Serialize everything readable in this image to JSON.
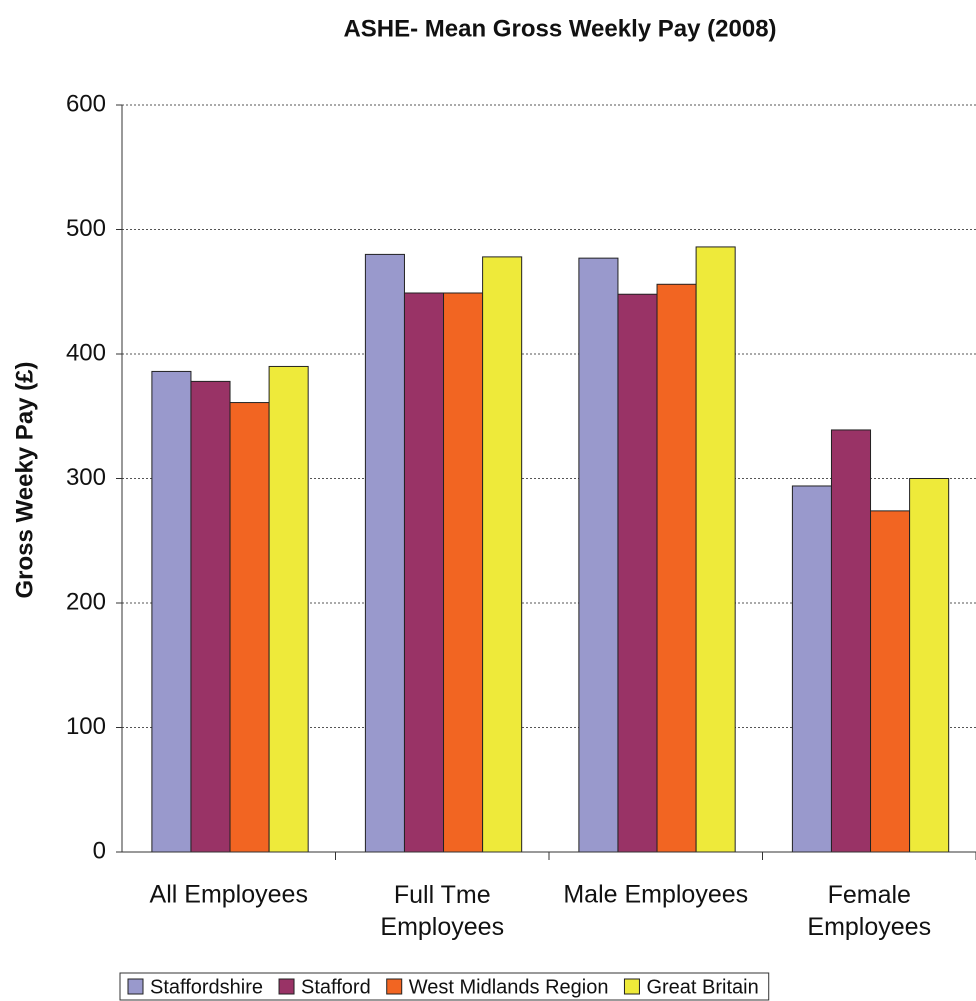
{
  "chart_data": {
    "type": "bar",
    "title": "ASHE- Mean Gross Weekly Pay (2008)",
    "y_label": "Gross Weeky Pay (£)",
    "categories": [
      "All Employees",
      "Full Tme Employees",
      "Male Employees",
      "Female Employees"
    ],
    "series": [
      {
        "name": "Staffordshire",
        "color": "#9999cc",
        "values": [
          386,
          480,
          477,
          294
        ]
      },
      {
        "name": "Stafford",
        "color": "#993366",
        "values": [
          378,
          449,
          448,
          339
        ]
      },
      {
        "name": "West Midlands Region",
        "color": "#f26522",
        "values": [
          361,
          449,
          456,
          274
        ]
      },
      {
        "name": "Great Britain",
        "color": "#eeea3a",
        "values": [
          390,
          478,
          486,
          300
        ]
      }
    ],
    "ylim": [
      0,
      600
    ],
    "yticks": [
      0,
      100,
      200,
      300,
      400,
      500,
      600
    ],
    "grid": true,
    "legend": "bottom"
  }
}
